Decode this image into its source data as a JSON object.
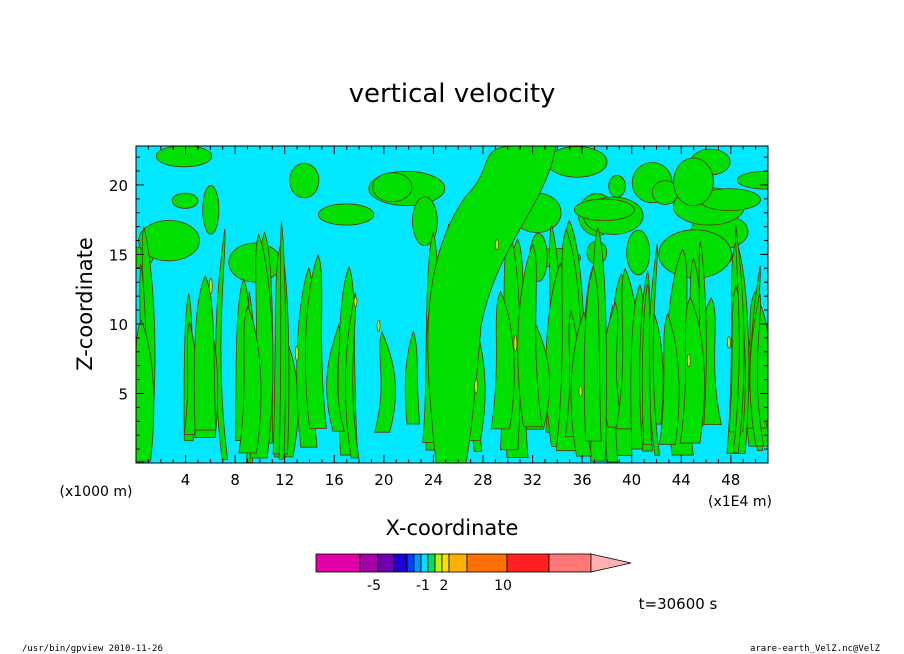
{
  "chart_data": {
    "type": "heatmap",
    "title": "vertical velocity",
    "xlabel": "X-coordinate",
    "ylabel": "Z-coordinate",
    "x_ticks": [
      "4",
      "8",
      "12",
      "16",
      "20",
      "24",
      "28",
      "32",
      "36",
      "40",
      "44",
      "48"
    ],
    "x_tick_values": [
      4,
      8,
      12,
      16,
      20,
      24,
      28,
      32,
      36,
      40,
      44,
      48
    ],
    "y_ticks": [
      "5",
      "10",
      "15",
      "20"
    ],
    "y_tick_values": [
      5,
      10,
      15,
      20
    ],
    "xlim": [
      0,
      51
    ],
    "ylim": [
      0,
      22.8
    ],
    "x_unit_note": "(x1E4 m)",
    "y_unit_note": "(x1000 m)",
    "colorbar": {
      "colors": [
        "#e000a8",
        "#a800a8",
        "#7000b0",
        "#2000d0",
        "#0040ff",
        "#0098ff",
        "#00e0ff",
        "#00e060",
        "#c0f000",
        "#ffe000",
        "#ffb000",
        "#ff7000",
        "#ff2020",
        "#ff7878"
      ],
      "extend_color": "#ffb0b0",
      "labels": [
        "-5",
        "-1",
        "2",
        "10"
      ]
    },
    "field_colors": {
      "negative": "#00e8ff",
      "positive": "#00e000",
      "strong_positive": "#c0f000",
      "contour": "#663300"
    },
    "time_label": "t=30600 s"
  },
  "footer": {
    "left": "/usr/bin/gpview   2010-11-26",
    "right": "arare-earth_VelZ.nc@VelZ"
  }
}
